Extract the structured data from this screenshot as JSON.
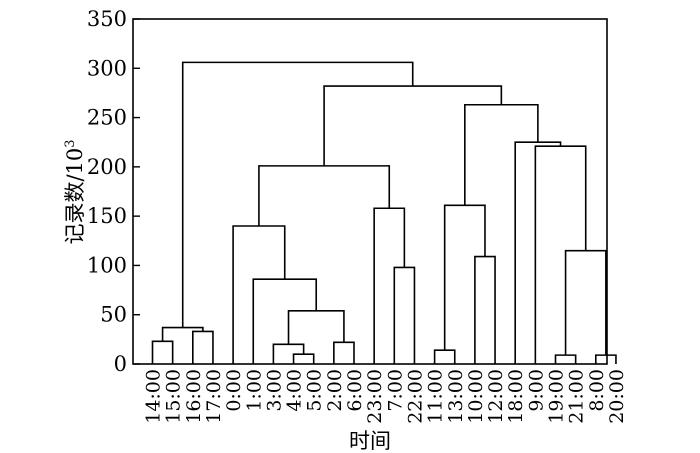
{
  "chart_data": {
    "type": "dendrogram",
    "xlabel": "时间",
    "ylabel_main": "记录数/10",
    "ylabel_sup": "3",
    "ylim": [
      0,
      350
    ],
    "yticks": [
      0,
      50,
      100,
      150,
      200,
      250,
      300,
      350
    ],
    "leaves": [
      "14:00",
      "15:00",
      "16:00",
      "17:00",
      "0:00",
      "1:00",
      "3:00",
      "4:00",
      "5:00",
      "2:00",
      "6:00",
      "23:00",
      "7:00",
      "22:00",
      "11:00",
      "13:00",
      "10:00",
      "12:00",
      "18:00",
      "9:00",
      "19:00",
      "21:00",
      "8:00",
      "20:00"
    ],
    "merges": [
      {
        "left": 0,
        "right": 1,
        "height": 23
      },
      {
        "left": 2,
        "right": 3,
        "height": 33
      },
      {
        "left": 7,
        "right": 8,
        "height": 10
      },
      {
        "left": 6,
        "right": 7.5,
        "height": 20
      },
      {
        "left": 9,
        "right": 10,
        "height": 22
      },
      {
        "left": 0.5,
        "right": 2.5,
        "height": 37
      },
      {
        "left": 6.75,
        "right": 9.5,
        "height": 54
      },
      {
        "left": 5,
        "right": 8.125,
        "height": 86
      },
      {
        "left": 4,
        "right": 6.5625,
        "height": 140
      },
      {
        "left": 12,
        "right": 13,
        "height": 98
      },
      {
        "left": 11,
        "right": 12.5,
        "height": 158
      },
      {
        "left": 5.28125,
        "right": 11.75,
        "height": 201
      },
      {
        "left": 14,
        "right": 15,
        "height": 14
      },
      {
        "left": 16,
        "right": 17,
        "height": 109
      },
      {
        "left": 14.5,
        "right": 16.5,
        "height": 161
      },
      {
        "left": 20,
        "right": 21,
        "height": 9
      },
      {
        "left": 22,
        "right": 23,
        "height": 9
      },
      {
        "left": 20.5,
        "right": 22.5,
        "height": 115
      },
      {
        "left": 19,
        "right": 21.5,
        "height": 221
      },
      {
        "left": 18,
        "right": 20.25,
        "height": 225
      },
      {
        "left": 15.5,
        "right": 19.125,
        "height": 263
      },
      {
        "left": 8.515625,
        "right": 17.3125,
        "height": 282
      },
      {
        "left": 1.5,
        "right": 12.9140625,
        "height": 306
      }
    ]
  }
}
